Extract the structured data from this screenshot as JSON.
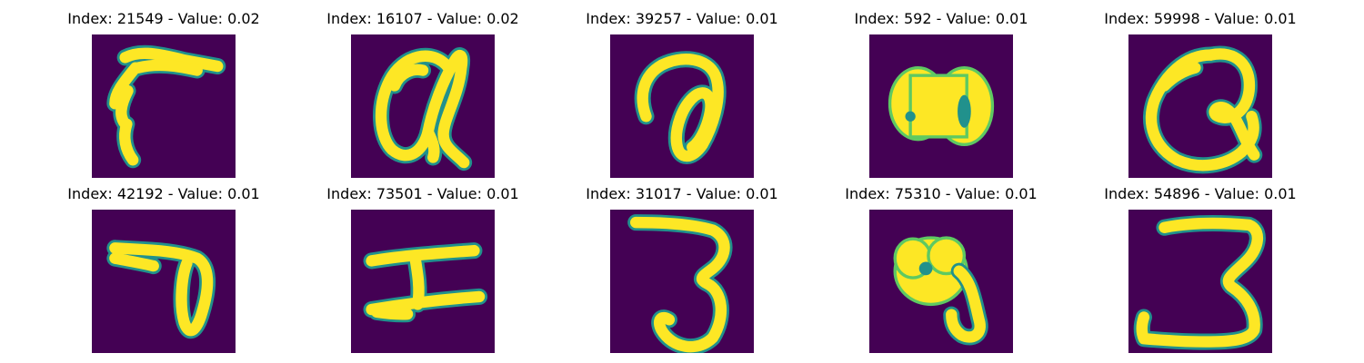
{
  "colors": {
    "background": "#440154",
    "stroke_core": "#fde725",
    "stroke_edge": "#21918c",
    "stroke_mid": "#5ec962"
  },
  "panels": [
    {
      "title": "Index: 21549 - Value: 0.02",
      "glyph": "hook-shape"
    },
    {
      "title": "Index: 16107 - Value: 0.02",
      "glyph": "looped-a-shape"
    },
    {
      "title": "Index: 39257 - Value: 0.01",
      "glyph": "spiral-shape"
    },
    {
      "title": "Index: 592 - Value: 0.01",
      "glyph": "double-blob-shape"
    },
    {
      "title": "Index: 59998 - Value: 0.01",
      "glyph": "looped-q-shape"
    },
    {
      "title": "Index: 42192 - Value: 0.01",
      "glyph": "flag-loop-shape"
    },
    {
      "title": "Index: 73501 - Value: 0.01",
      "glyph": "h-shape"
    },
    {
      "title": "Index: 31017 - Value: 0.01",
      "glyph": "three-shape"
    },
    {
      "title": "Index: 75310 - Value: 0.01",
      "glyph": "nine-shape"
    },
    {
      "title": "Index: 54896 - Value: 0.01",
      "glyph": "three-shape"
    }
  ]
}
